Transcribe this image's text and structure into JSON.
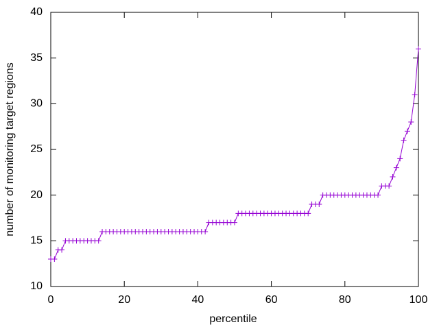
{
  "chart_data": {
    "type": "line",
    "xlabel": "percentile",
    "ylabel": "number of monitoring target regions",
    "x": [
      0,
      1,
      2,
      3,
      4,
      5,
      6,
      7,
      8,
      9,
      10,
      11,
      12,
      13,
      14,
      15,
      16,
      17,
      18,
      19,
      20,
      21,
      22,
      23,
      24,
      25,
      26,
      27,
      28,
      29,
      30,
      31,
      32,
      33,
      34,
      35,
      36,
      37,
      38,
      39,
      40,
      41,
      42,
      43,
      44,
      45,
      46,
      47,
      48,
      49,
      50,
      51,
      52,
      53,
      54,
      55,
      56,
      57,
      58,
      59,
      60,
      61,
      62,
      63,
      64,
      65,
      66,
      67,
      68,
      69,
      70,
      71,
      72,
      73,
      74,
      75,
      76,
      77,
      78,
      79,
      80,
      81,
      82,
      83,
      84,
      85,
      86,
      87,
      88,
      89,
      90,
      91,
      92,
      93,
      94,
      95,
      96,
      97,
      98,
      99,
      100
    ],
    "series": [
      {
        "color": "#9400d3",
        "values": [
          13,
          13,
          14,
          14,
          15,
          15,
          15,
          15,
          15,
          15,
          15,
          15,
          15,
          15,
          16,
          16,
          16,
          16,
          16,
          16,
          16,
          16,
          16,
          16,
          16,
          16,
          16,
          16,
          16,
          16,
          16,
          16,
          16,
          16,
          16,
          16,
          16,
          16,
          16,
          16,
          16,
          16,
          16,
          17,
          17,
          17,
          17,
          17,
          17,
          17,
          17,
          18,
          18,
          18,
          18,
          18,
          18,
          18,
          18,
          18,
          18,
          18,
          18,
          18,
          18,
          18,
          18,
          18,
          18,
          18,
          18,
          19,
          19,
          19,
          20,
          20,
          20,
          20,
          20,
          20,
          20,
          20,
          20,
          20,
          20,
          20,
          20,
          20,
          20,
          20,
          21,
          21,
          21,
          22,
          23,
          24,
          26,
          27,
          28,
          31,
          36
        ]
      }
    ],
    "xlim": [
      0,
      100
    ],
    "xticks": [
      0,
      20,
      40,
      60,
      80,
      100
    ],
    "ylim": [
      10,
      40
    ],
    "yticks": [
      10,
      15,
      20,
      25,
      30,
      35,
      40
    ]
  }
}
